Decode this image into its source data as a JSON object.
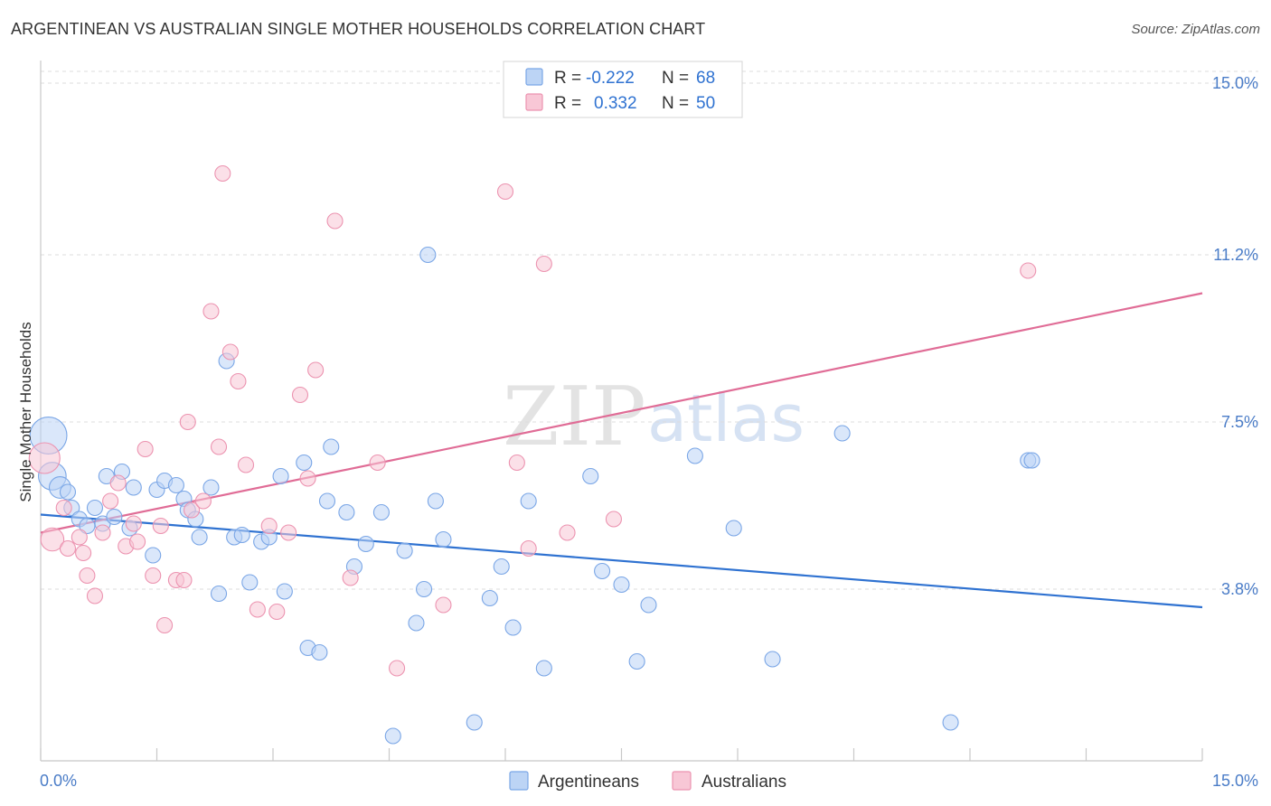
{
  "title": "ARGENTINEAN VS AUSTRALIAN SINGLE MOTHER HOUSEHOLDS CORRELATION CHART",
  "source": "Source: ZipAtlas.com",
  "watermark": {
    "left": "ZIP",
    "right": "atlas"
  },
  "legend": {
    "rows": [
      {
        "r_label": "R =",
        "r_value": "-0.222",
        "n_label": "N =",
        "n_value": "68"
      },
      {
        "r_label": "R =",
        "r_value": "0.332",
        "n_label": "N =",
        "n_value": "50"
      }
    ]
  },
  "chart_data": {
    "type": "scatter",
    "title": "ARGENTINEAN VS AUSTRALIAN SINGLE MOTHER HOUSEHOLDS CORRELATION CHART",
    "xlabel": "",
    "ylabel": "Single Mother Households",
    "xlim": [
      0,
      15
    ],
    "ylim": [
      0,
      15.5
    ],
    "x_tick_labels": [
      "0.0%",
      "15.0%"
    ],
    "y_ticks": [
      3.8,
      7.5,
      11.2,
      15.0
    ],
    "y_tick_labels": [
      "3.8%",
      "7.5%",
      "11.2%",
      "15.0%"
    ],
    "grid": "horizontal dashed",
    "legend_placement": "top-center",
    "colors": {
      "Argentineans": {
        "fill": "#bcd4f5",
        "stroke": "#7aa6e6",
        "line": "#2f72d1"
      },
      "Australians": {
        "fill": "#f8c7d6",
        "stroke": "#ec93b0",
        "line": "#e06c96"
      }
    },
    "series": [
      {
        "name": "Argentineans",
        "trend": {
          "x": [
            0,
            15
          ],
          "y": [
            5.45,
            3.4
          ]
        },
        "points": [
          {
            "x": 0.1,
            "y": 7.2,
            "s": 2.4
          },
          {
            "x": 0.15,
            "y": 6.3,
            "s": 1.8
          },
          {
            "x": 0.25,
            "y": 6.05,
            "s": 1.4
          },
          {
            "x": 0.35,
            "y": 5.95
          },
          {
            "x": 0.4,
            "y": 5.6
          },
          {
            "x": 0.5,
            "y": 5.35
          },
          {
            "x": 0.6,
            "y": 5.2
          },
          {
            "x": 0.7,
            "y": 5.6
          },
          {
            "x": 0.8,
            "y": 5.25
          },
          {
            "x": 0.85,
            "y": 6.3
          },
          {
            "x": 0.95,
            "y": 5.4
          },
          {
            "x": 1.05,
            "y": 6.4
          },
          {
            "x": 1.15,
            "y": 5.15
          },
          {
            "x": 1.2,
            "y": 6.05
          },
          {
            "x": 1.45,
            "y": 4.55
          },
          {
            "x": 1.5,
            "y": 6.0
          },
          {
            "x": 1.6,
            "y": 6.2
          },
          {
            "x": 1.75,
            "y": 6.1
          },
          {
            "x": 1.85,
            "y": 5.8
          },
          {
            "x": 1.9,
            "y": 5.55
          },
          {
            "x": 2.0,
            "y": 5.35
          },
          {
            "x": 2.05,
            "y": 4.95
          },
          {
            "x": 2.2,
            "y": 6.05
          },
          {
            "x": 2.3,
            "y": 3.7
          },
          {
            "x": 2.4,
            "y": 8.85
          },
          {
            "x": 2.5,
            "y": 4.95
          },
          {
            "x": 2.6,
            "y": 5.0
          },
          {
            "x": 2.7,
            "y": 3.95
          },
          {
            "x": 2.85,
            "y": 4.85
          },
          {
            "x": 2.95,
            "y": 4.95
          },
          {
            "x": 3.1,
            "y": 6.3
          },
          {
            "x": 3.15,
            "y": 3.75
          },
          {
            "x": 3.4,
            "y": 6.6
          },
          {
            "x": 3.45,
            "y": 2.5
          },
          {
            "x": 3.6,
            "y": 2.4
          },
          {
            "x": 3.7,
            "y": 5.75
          },
          {
            "x": 3.75,
            "y": 6.95
          },
          {
            "x": 3.95,
            "y": 5.5
          },
          {
            "x": 4.05,
            "y": 4.3
          },
          {
            "x": 4.2,
            "y": 4.8
          },
          {
            "x": 4.4,
            "y": 5.5
          },
          {
            "x": 4.55,
            "y": 0.55
          },
          {
            "x": 4.7,
            "y": 4.65
          },
          {
            "x": 4.85,
            "y": 3.05
          },
          {
            "x": 4.95,
            "y": 3.8
          },
          {
            "x": 5.0,
            "y": 11.2
          },
          {
            "x": 5.1,
            "y": 5.75
          },
          {
            "x": 5.2,
            "y": 4.9
          },
          {
            "x": 5.6,
            "y": 0.85
          },
          {
            "x": 5.8,
            "y": 3.6
          },
          {
            "x": 5.95,
            "y": 4.3
          },
          {
            "x": 6.1,
            "y": 2.95
          },
          {
            "x": 6.3,
            "y": 5.75
          },
          {
            "x": 6.5,
            "y": 2.05
          },
          {
            "x": 7.1,
            "y": 6.3
          },
          {
            "x": 7.25,
            "y": 4.2
          },
          {
            "x": 7.5,
            "y": 3.9
          },
          {
            "x": 7.7,
            "y": 2.2
          },
          {
            "x": 7.85,
            "y": 3.45
          },
          {
            "x": 8.45,
            "y": 6.75
          },
          {
            "x": 8.95,
            "y": 5.15
          },
          {
            "x": 9.45,
            "y": 2.25
          },
          {
            "x": 10.35,
            "y": 7.25
          },
          {
            "x": 11.75,
            "y": 0.85
          },
          {
            "x": 12.75,
            "y": 6.65
          },
          {
            "x": 12.8,
            "y": 6.65
          }
        ]
      },
      {
        "name": "Australians",
        "trend": {
          "x": [
            0,
            15
          ],
          "y": [
            5.05,
            10.35
          ]
        },
        "points": [
          {
            "x": 0.05,
            "y": 6.7,
            "s": 2.0
          },
          {
            "x": 0.15,
            "y": 4.9,
            "s": 1.5
          },
          {
            "x": 0.3,
            "y": 5.6
          },
          {
            "x": 0.35,
            "y": 4.7
          },
          {
            "x": 0.5,
            "y": 4.95
          },
          {
            "x": 0.55,
            "y": 4.6
          },
          {
            "x": 0.6,
            "y": 4.1
          },
          {
            "x": 0.7,
            "y": 3.65
          },
          {
            "x": 0.8,
            "y": 5.05
          },
          {
            "x": 0.9,
            "y": 5.75
          },
          {
            "x": 1.0,
            "y": 6.15
          },
          {
            "x": 1.1,
            "y": 4.75
          },
          {
            "x": 1.2,
            "y": 5.25
          },
          {
            "x": 1.25,
            "y": 4.85
          },
          {
            "x": 1.35,
            "y": 6.9
          },
          {
            "x": 1.45,
            "y": 4.1
          },
          {
            "x": 1.55,
            "y": 5.2
          },
          {
            "x": 1.6,
            "y": 3.0
          },
          {
            "x": 1.75,
            "y": 4.0
          },
          {
            "x": 1.85,
            "y": 4.0
          },
          {
            "x": 1.9,
            "y": 7.5
          },
          {
            "x": 1.95,
            "y": 5.55
          },
          {
            "x": 2.1,
            "y": 5.75
          },
          {
            "x": 2.2,
            "y": 9.95
          },
          {
            "x": 2.3,
            "y": 6.95
          },
          {
            "x": 2.35,
            "y": 13.0
          },
          {
            "x": 2.45,
            "y": 9.05
          },
          {
            "x": 2.55,
            "y": 8.4
          },
          {
            "x": 2.65,
            "y": 6.55
          },
          {
            "x": 2.8,
            "y": 3.35
          },
          {
            "x": 2.95,
            "y": 5.2
          },
          {
            "x": 3.05,
            "y": 3.3
          },
          {
            "x": 3.2,
            "y": 5.05
          },
          {
            "x": 3.35,
            "y": 8.1
          },
          {
            "x": 3.45,
            "y": 6.25
          },
          {
            "x": 3.55,
            "y": 8.65
          },
          {
            "x": 3.8,
            "y": 11.95
          },
          {
            "x": 4.0,
            "y": 4.05
          },
          {
            "x": 4.35,
            "y": 6.6
          },
          {
            "x": 4.6,
            "y": 2.05
          },
          {
            "x": 5.2,
            "y": 3.45
          },
          {
            "x": 6.0,
            "y": 12.6
          },
          {
            "x": 6.15,
            "y": 6.6
          },
          {
            "x": 6.3,
            "y": 4.7
          },
          {
            "x": 6.5,
            "y": 11.0
          },
          {
            "x": 6.8,
            "y": 5.05
          },
          {
            "x": 7.4,
            "y": 5.35
          },
          {
            "x": 12.75,
            "y": 10.85
          }
        ]
      }
    ]
  },
  "bottom_legend": [
    "Argentineans",
    "Australians"
  ]
}
